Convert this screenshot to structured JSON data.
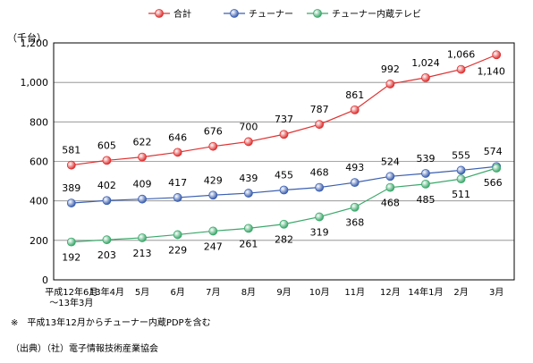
{
  "chart_data": {
    "type": "line",
    "unit_label": "（千台）",
    "categories": [
      "平成12年6月\n～13年3月",
      "13年4月",
      "5月",
      "6月",
      "7月",
      "8月",
      "9月",
      "10月",
      "11月",
      "12月",
      "14年1月",
      "2月",
      "3月"
    ],
    "y_ticks": [
      "0",
      "200",
      "400",
      "600",
      "800",
      "1,000",
      "1,200"
    ],
    "ylim": [
      0,
      1200
    ],
    "grid": true,
    "legend_position": "top",
    "series": [
      {
        "name": "合計",
        "color": "#e03030",
        "values": [
          581,
          605,
          622,
          646,
          676,
          700,
          737,
          787,
          861,
          992,
          1024,
          1066,
          1140
        ],
        "labels": [
          "581",
          "605",
          "622",
          "646",
          "676",
          "700",
          "737",
          "787",
          "861",
          "992",
          "1,024",
          "1,066",
          "1,140"
        ]
      },
      {
        "name": "チューナー",
        "color": "#3b5fb0",
        "values": [
          389,
          402,
          409,
          417,
          429,
          439,
          455,
          468,
          493,
          524,
          539,
          555,
          574
        ],
        "labels": [
          "389",
          "402",
          "409",
          "417",
          "429",
          "439",
          "455",
          "468",
          "493",
          "524",
          "539",
          "555",
          "574"
        ]
      },
      {
        "name": "チューナー内蔵テレビ",
        "color": "#3aa86a",
        "values": [
          192,
          203,
          213,
          229,
          247,
          261,
          282,
          319,
          368,
          468,
          485,
          511,
          566
        ],
        "labels": [
          "192",
          "203",
          "213",
          "229",
          "247",
          "261",
          "282",
          "319",
          "368",
          "468",
          "485",
          "511",
          "566"
        ]
      }
    ]
  },
  "notes": {
    "footnote": "※　平成13年12月からチューナー内蔵PDPを含む",
    "source": "（出典）（社）電子情報技術産業協会"
  }
}
